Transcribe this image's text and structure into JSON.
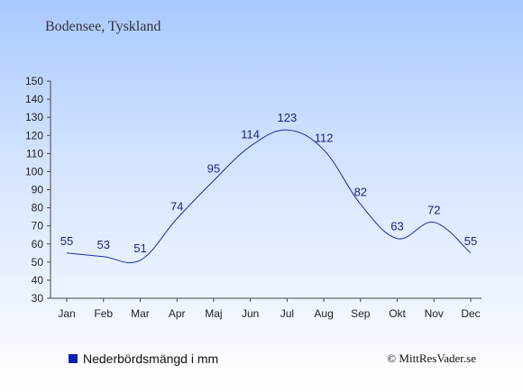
{
  "chart_data": {
    "type": "line",
    "title": "Bodensee, Tyskland",
    "categories": [
      "Jan",
      "Feb",
      "Mar",
      "Apr",
      "Maj",
      "Jun",
      "Jul",
      "Aug",
      "Sep",
      "Okt",
      "Nov",
      "Dec"
    ],
    "series": [
      {
        "name": "Nederbördsmängd i mm",
        "values": [
          55,
          53,
          51,
          74,
          95,
          114,
          123,
          112,
          82,
          63,
          72,
          55
        ]
      }
    ],
    "yticks": [
      30,
      40,
      50,
      60,
      70,
      80,
      90,
      100,
      110,
      120,
      130,
      140,
      150
    ],
    "ylim": [
      30,
      150
    ],
    "grid": false,
    "legend_position": "bottom-left",
    "line_color": "#1a2eab",
    "legend_color": "#0a20b0"
  },
  "copyright": "© MittResVader.se"
}
